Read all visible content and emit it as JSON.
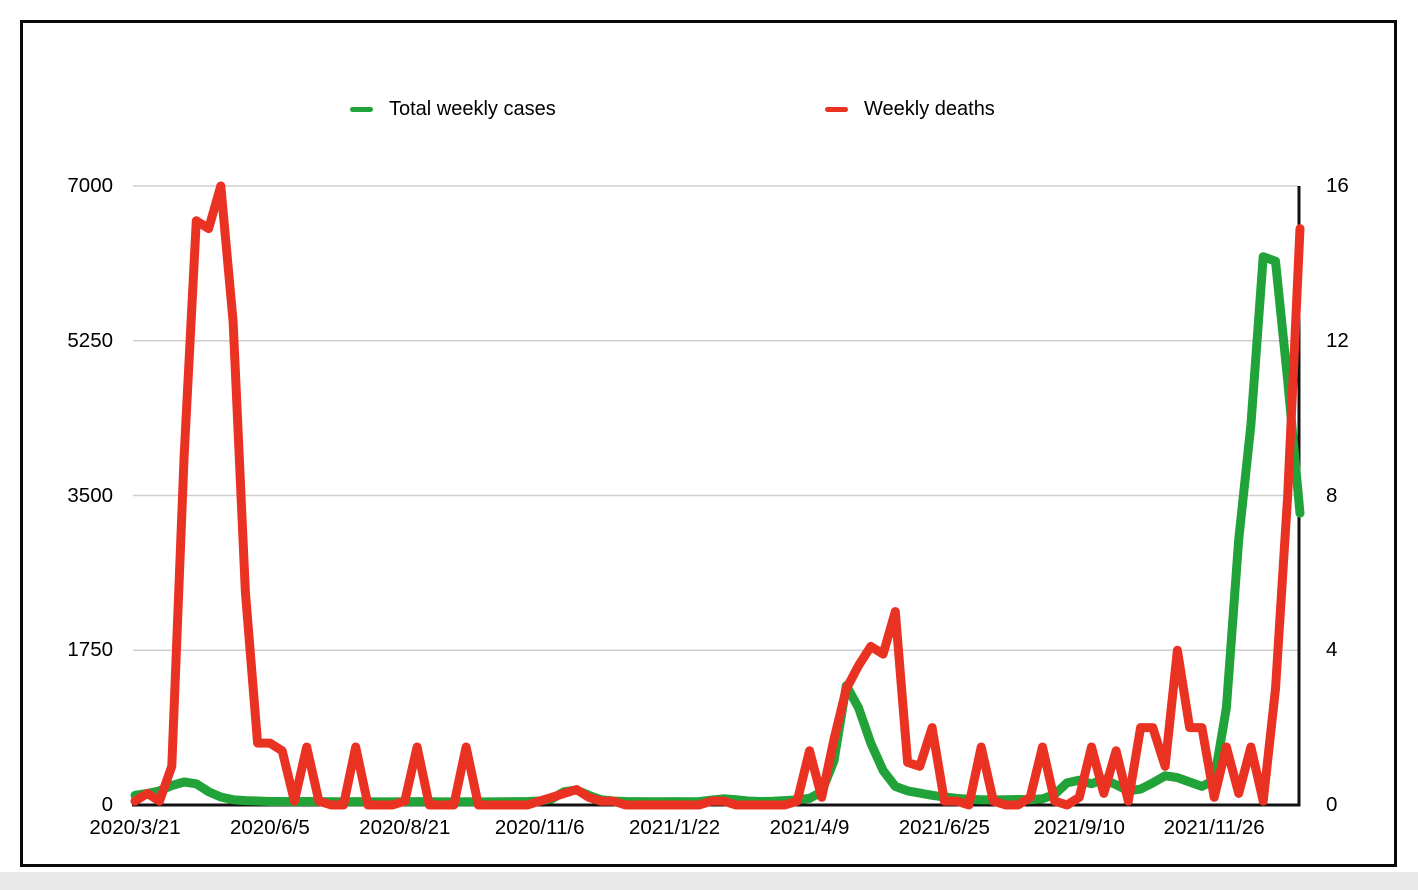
{
  "page": {
    "background": "#ffffff",
    "frame_border_color": "#0a0a0a",
    "bottom_strip_color": "#e9e9ea",
    "gridline_color": "#cfcfcf",
    "axis_line_color": "#111111"
  },
  "legend": {
    "items": [
      {
        "label": "Total weekly cases",
        "color": "#22a339"
      },
      {
        "label": "Weekly deaths",
        "color": "#ea3223"
      }
    ]
  },
  "chart_data": {
    "type": "line",
    "title": "",
    "xlabel": "",
    "ylabel_left": "",
    "ylabel_right": "",
    "grid": "horizontal",
    "legend_position": "top",
    "x_interval": "weekly",
    "x_tick_labels": [
      "2020/3/21",
      "2020/6/5",
      "2020/8/21",
      "2020/11/6",
      "2021/1/22",
      "2021/4/9",
      "2021/6/25",
      "2021/9/10",
      "2021/11/26"
    ],
    "x_tick_point_indexes": [
      0,
      11,
      22,
      33,
      44,
      55,
      66,
      77,
      88
    ],
    "left_axis": {
      "range": [
        0,
        7000
      ],
      "ticks": [
        0,
        1750,
        3500,
        5250,
        7000
      ],
      "tick_labels": [
        "0",
        "1750",
        "3500",
        "5250",
        "7000"
      ]
    },
    "right_axis": {
      "range": [
        0,
        16
      ],
      "ticks": [
        0,
        4,
        8,
        12,
        16
      ],
      "tick_labels": [
        "0",
        "4",
        "8",
        "12",
        "16"
      ]
    },
    "series": [
      {
        "name": "Total weekly cases",
        "axis": "left",
        "color": "#22a339",
        "values": [
          110,
          130,
          160,
          220,
          260,
          240,
          150,
          90,
          60,
          50,
          45,
          40,
          40,
          38,
          40,
          38,
          36,
          36,
          38,
          36,
          35,
          35,
          36,
          38,
          36,
          35,
          35,
          36,
          35,
          35,
          36,
          38,
          40,
          45,
          70,
          150,
          170,
          110,
          60,
          45,
          40,
          38,
          36,
          36,
          38,
          36,
          38,
          55,
          70,
          60,
          45,
          40,
          42,
          50,
          60,
          75,
          150,
          500,
          1350,
          1100,
          700,
          390,
          210,
          160,
          135,
          110,
          90,
          75,
          65,
          60,
          58,
          60,
          62,
          60,
          70,
          120,
          250,
          280,
          240,
          290,
          230,
          160,
          180,
          250,
          330,
          310,
          260,
          210,
          280,
          1100,
          3000,
          4300,
          6200,
          6150,
          4800,
          3300
        ]
      },
      {
        "name": "Weekly deaths",
        "axis": "right",
        "color": "#ea3223",
        "values": [
          0.1,
          0.3,
          0.1,
          1.0,
          9.0,
          15.1,
          14.9,
          16.0,
          12.5,
          5.5,
          1.6,
          1.6,
          1.4,
          0.1,
          1.5,
          0.1,
          0,
          0,
          1.5,
          0,
          0,
          0,
          0.1,
          1.5,
          0,
          0,
          0,
          1.5,
          0,
          0,
          0,
          0,
          0,
          0.1,
          0.2,
          0.3,
          0.4,
          0.2,
          0.1,
          0.1,
          0,
          0,
          0,
          0,
          0,
          0,
          0,
          0.1,
          0.1,
          0,
          0,
          0,
          0,
          0,
          0.1,
          1.4,
          0.2,
          1.7,
          3.0,
          3.6,
          4.1,
          3.9,
          5.0,
          1.1,
          1.0,
          2.0,
          0.1,
          0.1,
          0,
          1.5,
          0.1,
          0,
          0,
          0.2,
          1.5,
          0.1,
          0,
          0.2,
          1.5,
          0.3,
          1.4,
          0.1,
          2.0,
          2.0,
          1.0,
          4.0,
          2.0,
          2.0,
          0.2,
          1.5,
          0.3,
          1.5,
          0.1,
          3.0,
          8.0,
          14.9
        ]
      }
    ]
  }
}
